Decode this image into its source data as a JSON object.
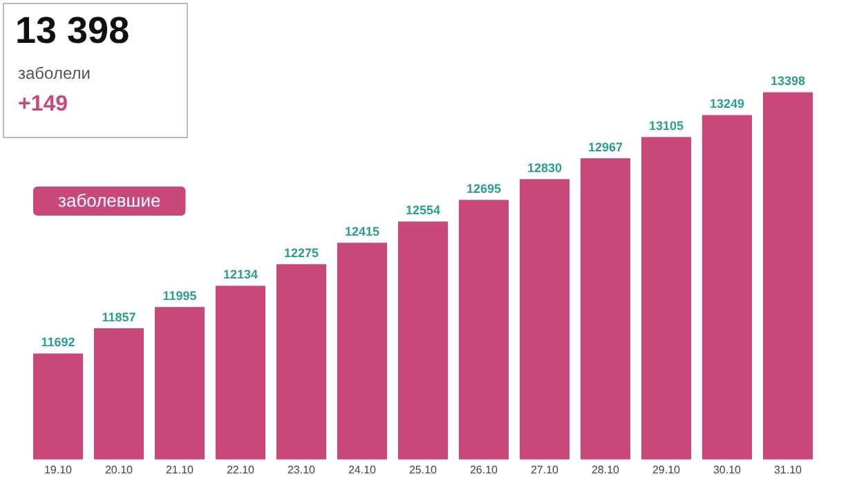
{
  "chart_data": {
    "type": "bar",
    "categories": [
      "19.10",
      "20.10",
      "21.10",
      "22.10",
      "23.10",
      "24.10",
      "25.10",
      "26.10",
      "27.10",
      "28.10",
      "29.10",
      "30.10",
      "31.10"
    ],
    "series": [
      {
        "name": "заболевшие",
        "color": "#c9487a",
        "values": [
          11692,
          11857,
          11995,
          12134,
          12275,
          12415,
          12554,
          12695,
          12830,
          12967,
          13105,
          13249,
          13398
        ]
      }
    ],
    "tick_labels": "x",
    "grid": false,
    "legend": "top left",
    "data_labels": true,
    "annotations": [
      "13 398",
      "заболели",
      "+149"
    ]
  }
}
